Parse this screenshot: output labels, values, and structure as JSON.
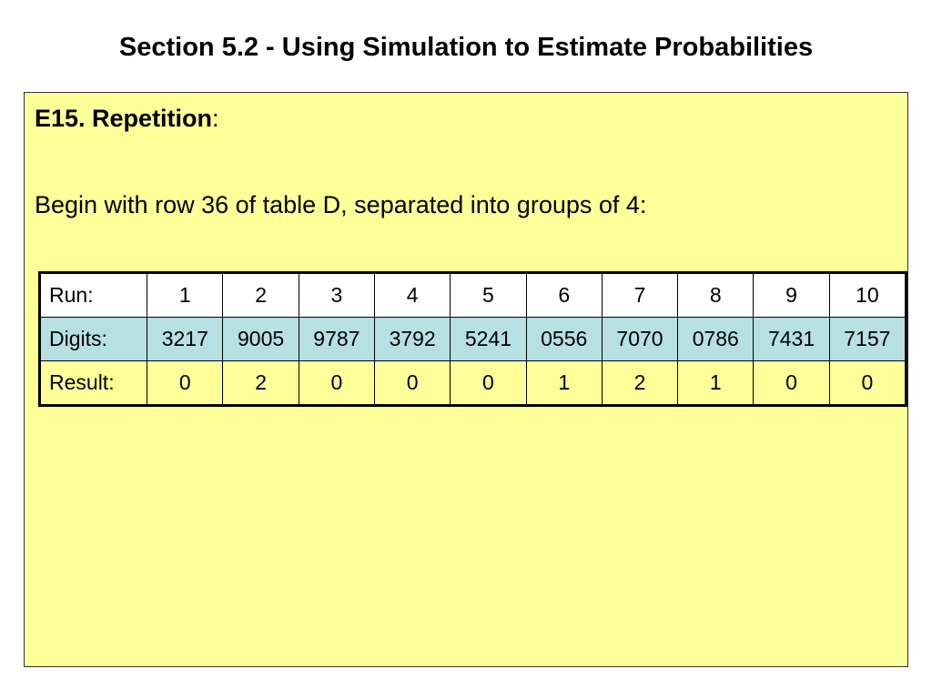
{
  "title": "Section 5.2 - Using Simulation to Estimate Probabilities",
  "exercise": {
    "heading": "E15. Repetition",
    "heading_suffix": ":",
    "instruction": "Begin with row 36 of table D, separated into groups of 4:"
  },
  "table": {
    "rows": [
      {
        "label": "Run:",
        "cells": [
          "1",
          "2",
          "3",
          "4",
          "5",
          "6",
          "7",
          "8",
          "9",
          "10"
        ],
        "color": "#ffffff"
      },
      {
        "label": "Digits:",
        "cells": [
          "3217",
          "9005",
          "9787",
          "3792",
          "5241",
          "0556",
          "7070",
          "0786",
          "7431",
          "7157"
        ],
        "color": "#b7e0e3"
      },
      {
        "label": "Result:",
        "cells": [
          "0",
          "2",
          "0",
          "0",
          "0",
          "1",
          "2",
          "1",
          "0",
          "0"
        ],
        "color": "#ffff99"
      }
    ]
  },
  "colors": {
    "content_background": "#ffff99",
    "digits_row": "#b7e0e3"
  }
}
